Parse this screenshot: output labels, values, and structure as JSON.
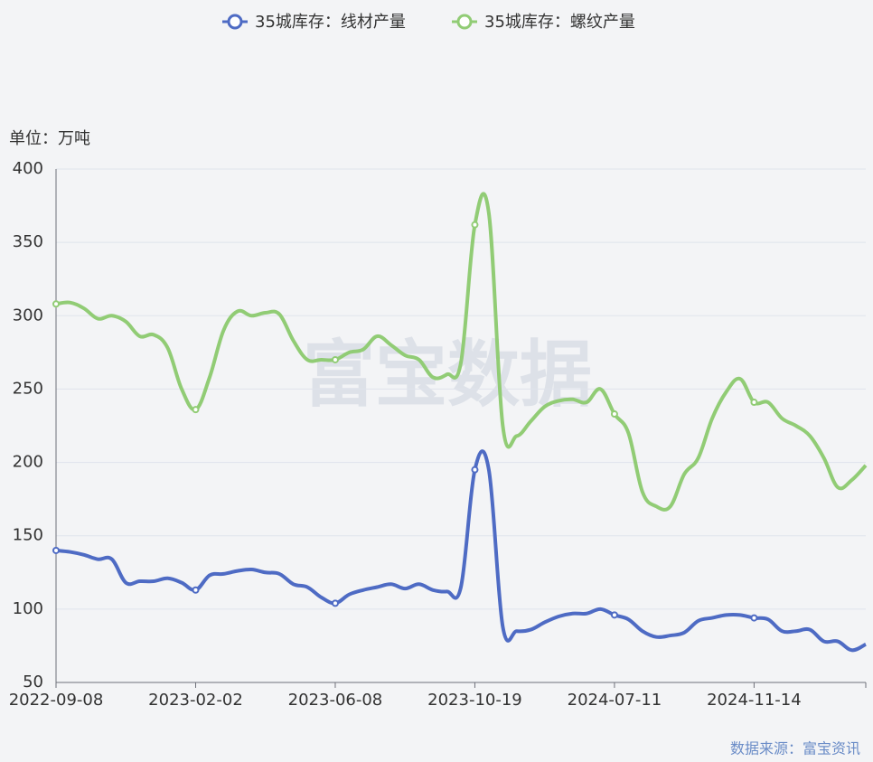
{
  "chart_data": {
    "type": "line",
    "y_axis_label": "单位：万吨",
    "source": "数据来源：富宝资讯",
    "watermark": "富宝数据",
    "categories": [
      "2022-09-08",
      null,
      null,
      null,
      null,
      null,
      null,
      null,
      null,
      null,
      "2023-02-02",
      null,
      null,
      null,
      null,
      null,
      null,
      null,
      null,
      null,
      "2023-06-08",
      null,
      null,
      null,
      null,
      null,
      null,
      null,
      null,
      null,
      "2023-10-19",
      null,
      null,
      null,
      null,
      null,
      null,
      null,
      null,
      null,
      "2024-07-11",
      null,
      null,
      null,
      null,
      null,
      null,
      null,
      null,
      null,
      "2024-11-14",
      null,
      null,
      null,
      null,
      null,
      null,
      null,
      null
    ],
    "series": [
      {
        "name": "35城库存：线材产量",
        "color": "#4e6bc4",
        "values": [
          140,
          139,
          137,
          134,
          134,
          118,
          119,
          119,
          121,
          118,
          113,
          123,
          124,
          126,
          127,
          125,
          124,
          117,
          115,
          108,
          104,
          110,
          113,
          115,
          117,
          114,
          117,
          113,
          112,
          115,
          195,
          195,
          88,
          85,
          86,
          91,
          95,
          97,
          97,
          100,
          96,
          93,
          85,
          81,
          82,
          84,
          92,
          94,
          96,
          96,
          94,
          93,
          85,
          85,
          86,
          78,
          78,
          72,
          76
        ]
      },
      {
        "name": "35城库存：螺纹产量",
        "color": "#91cc75",
        "values": [
          308,
          309,
          305,
          298,
          300,
          296,
          286,
          287,
          278,
          250,
          236,
          258,
          290,
          303,
          300,
          302,
          301,
          283,
          270,
          270,
          270,
          275,
          277,
          286,
          280,
          273,
          270,
          258,
          260,
          268,
          362,
          370,
          225,
          218,
          228,
          238,
          242,
          243,
          241,
          250,
          233,
          220,
          180,
          170,
          170,
          192,
          203,
          230,
          248,
          257,
          241,
          241,
          230,
          225,
          218,
          203,
          183,
          188,
          198
        ]
      }
    ],
    "ylim": [
      50,
      400
    ],
    "yticks": [
      50,
      100,
      150,
      200,
      250,
      300,
      350,
      400
    ],
    "grid": true
  }
}
